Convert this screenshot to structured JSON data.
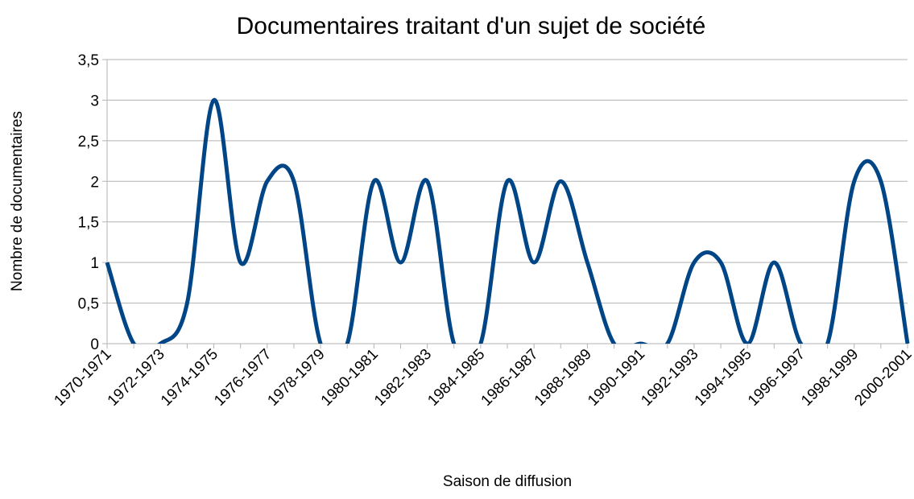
{
  "chart_data": {
    "type": "line",
    "title": "Documentaires traitant d'un sujet de société",
    "x_label": "Saison de diffusion",
    "y_label": "Nombre de documentaires",
    "categories": [
      "1970-1971",
      null,
      "1972-1973",
      null,
      "1974-1975",
      null,
      "1976-1977",
      null,
      "1978-1979",
      null,
      "1980-1981",
      null,
      "1982-1983",
      null,
      "1984-1985",
      null,
      "1986-1987",
      null,
      "1988-1989",
      null,
      "1990-1991",
      null,
      "1992-1993",
      null,
      "1994-1995",
      null,
      "1996-1997",
      null,
      "1998-1999",
      null,
      "2000-2001"
    ],
    "series": [
      {
        "name": "Documentaires",
        "color": "#004586",
        "values": [
          1,
          0,
          0,
          0.5,
          3,
          1,
          2,
          2,
          0,
          0,
          2,
          1,
          2,
          0,
          0,
          2,
          1,
          2,
          1,
          0,
          0,
          0,
          1,
          1,
          0,
          1,
          0,
          0,
          2,
          2,
          0
        ]
      }
    ],
    "ylim": [
      0,
      3.5
    ],
    "yticks": [
      0,
      {
        "value": 0.5,
        "label": "0,5"
      },
      1,
      {
        "value": 1.5,
        "label": "1,5"
      },
      2,
      {
        "value": 2.5,
        "label": "2,5"
      },
      3,
      {
        "value": 3.5,
        "label": "3,5"
      }
    ],
    "grid": true,
    "smooth": true
  }
}
